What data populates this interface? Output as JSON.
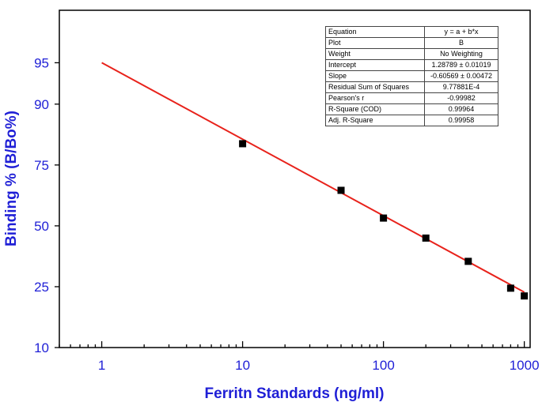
{
  "chart_data": {
    "type": "scatter",
    "xlabel": "Ferritn Standards (ng/ml)",
    "ylabel": "Binding % (B/Bo%)",
    "x_scale": "log",
    "y_scale": "logit",
    "xlim": [
      0.5,
      1100
    ],
    "ylim": [
      10,
      98
    ],
    "x_ticks": [
      1,
      10,
      100,
      1000
    ],
    "x_tick_labels": [
      "1",
      "10",
      "100",
      "1000"
    ],
    "y_ticks": [
      10,
      25,
      50,
      75,
      90,
      95
    ],
    "y_tick_labels": [
      "10",
      "25",
      "50",
      "75",
      "90",
      "95"
    ],
    "colors": {
      "axis_label": "#1f1fd6",
      "tick_label": "#1f1fd6",
      "fit_line": "#e8221b",
      "points": "#000000"
    },
    "series": [
      {
        "type": "scatter",
        "x": [
          10,
          50,
          100,
          200,
          400,
          800,
          1000
        ],
        "y": [
          81.5,
          65.5,
          53.5,
          44.5,
          34.5,
          24.5,
          22
        ]
      },
      {
        "type": "line",
        "x": [
          1,
          1000
        ],
        "y": [
          95.0,
          23.2
        ]
      }
    ],
    "fit_table": [
      {
        "key": "Equation",
        "value": "y = a + b*x"
      },
      {
        "key": "Plot",
        "value": "B"
      },
      {
        "key": "Weight",
        "value": "No Weighting"
      },
      {
        "key": "Intercept",
        "value": "1.28789 ± 0.01019"
      },
      {
        "key": "Slope",
        "value": "-0.60569 ± 0.00472"
      },
      {
        "key": "Residual Sum of Squares",
        "value": "9.77881E-4"
      },
      {
        "key": "Pearson's r",
        "value": "-0.99982"
      },
      {
        "key": "R-Square (COD)",
        "value": "0.99964"
      },
      {
        "key": "Adj. R-Square",
        "value": "0.99958"
      }
    ]
  }
}
